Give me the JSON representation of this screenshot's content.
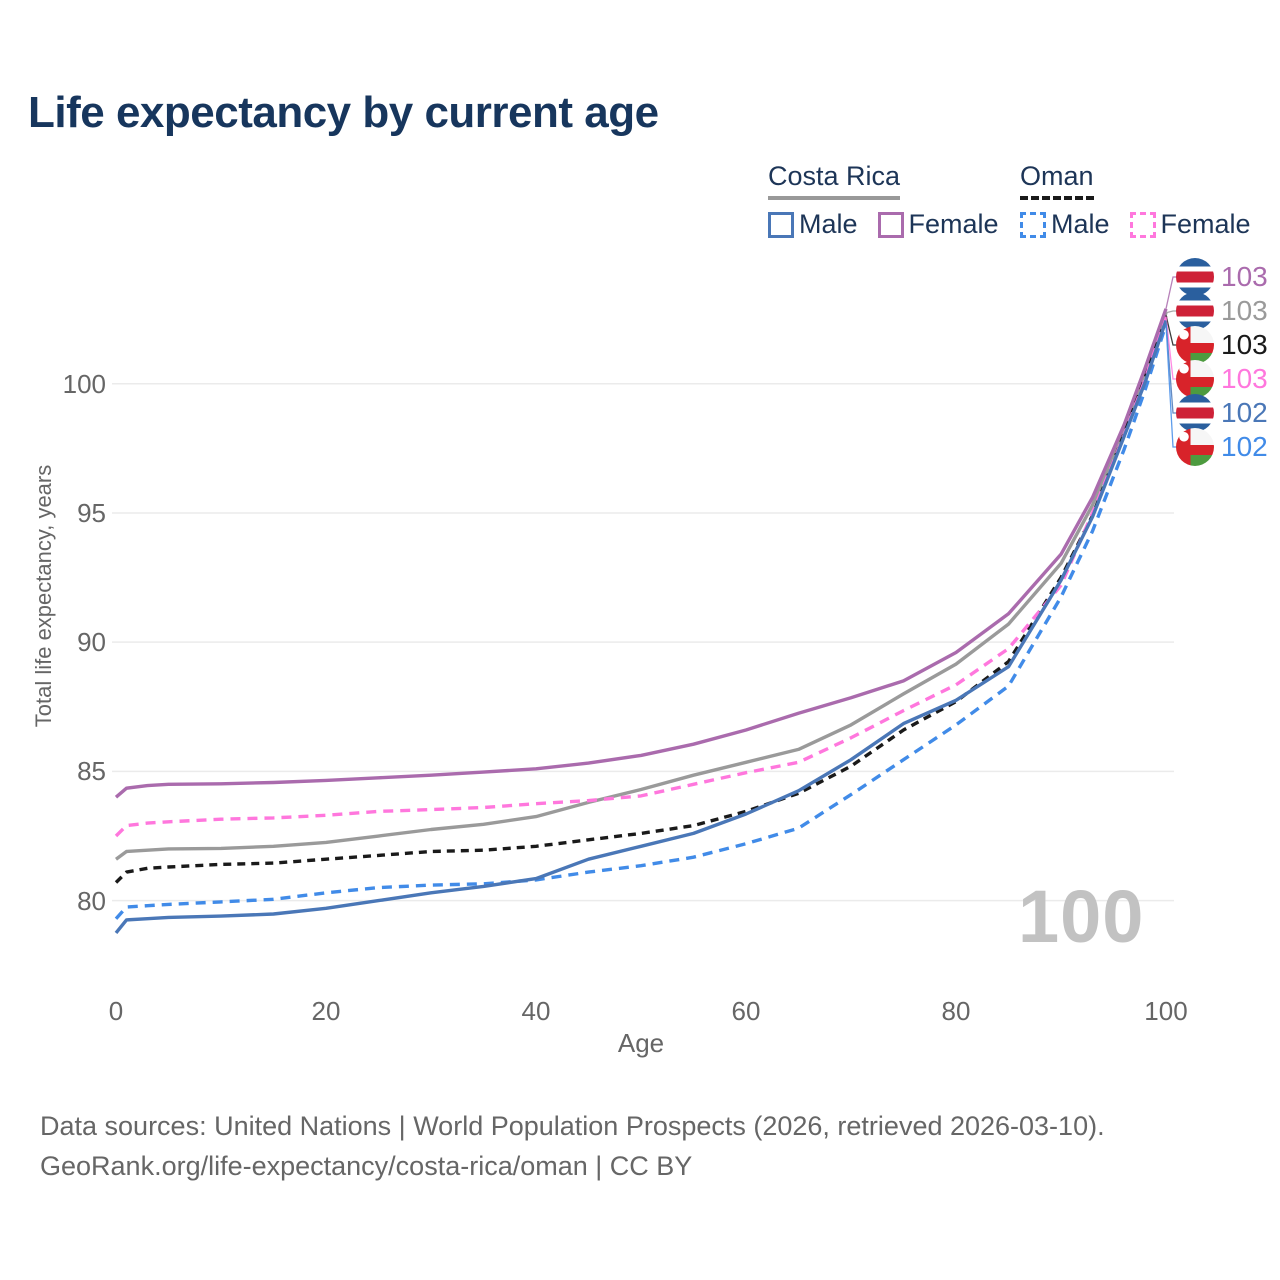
{
  "title": "Life expectancy by current age",
  "legend": {
    "groups": [
      {
        "label": "Costa Rica",
        "line_style": "solid",
        "line_color": "#999999",
        "items": [
          {
            "label": "Male",
            "color": "#4a77b7",
            "dashed": false
          },
          {
            "label": "Female",
            "color": "#aa6bad",
            "dashed": false
          }
        ]
      },
      {
        "label": "Oman",
        "line_style": "dashed",
        "line_color": "#1a1a1a",
        "items": [
          {
            "label": "Male",
            "color": "#418be8",
            "dashed": true
          },
          {
            "label": "Female",
            "color": "#ff77dd",
            "dashed": true
          }
        ]
      }
    ]
  },
  "watermark": "100",
  "footer": {
    "line1": "Data sources: United Nations | World Population Prospects (2026, retrieved 2026-03-10).",
    "line2": "GeoRank.org/life-expectancy/costa-rica/oman | CC BY"
  },
  "chart_data": {
    "type": "line",
    "title": "Life expectancy by current age",
    "xlabel": "Age",
    "ylabel": "Total life expectancy, years",
    "xlim": [
      0,
      100
    ],
    "xticks": [
      0,
      20,
      40,
      60,
      80,
      100
    ],
    "yticks": [
      80,
      85,
      90,
      95,
      100
    ],
    "grid": "horizontal",
    "legend_position": "top-right",
    "x": [
      0,
      1,
      3,
      5,
      10,
      15,
      20,
      25,
      30,
      35,
      40,
      45,
      50,
      55,
      60,
      65,
      70,
      75,
      80,
      85,
      90,
      93,
      96,
      98,
      100
    ],
    "series": [
      {
        "name": "Costa Rica Female",
        "country": "Costa Rica",
        "sex": "Female",
        "color": "#aa6bad",
        "dashed": false,
        "flag": "costa-rica",
        "end_label": "103",
        "values": [
          84.0,
          84.35,
          84.45,
          84.5,
          84.52,
          84.57,
          84.65,
          84.75,
          84.85,
          84.97,
          85.1,
          85.32,
          85.62,
          86.05,
          86.6,
          87.25,
          87.85,
          88.5,
          89.6,
          91.1,
          93.4,
          95.6,
          98.4,
          100.6,
          102.9
        ]
      },
      {
        "name": "Costa Rica Both sexes",
        "country": "Costa Rica",
        "sex": "Both",
        "color": "#9a9a9a",
        "dashed": false,
        "flag": "costa-rica",
        "end_label": "103",
        "values": [
          81.6,
          81.9,
          81.95,
          82.0,
          82.02,
          82.1,
          82.25,
          82.5,
          82.75,
          82.95,
          83.25,
          83.8,
          84.3,
          84.85,
          85.35,
          85.85,
          86.8,
          88.0,
          89.15,
          90.7,
          93.05,
          95.3,
          98.2,
          100.45,
          102.75
        ]
      },
      {
        "name": "Oman Both sexes",
        "country": "Oman",
        "sex": "Both",
        "color": "#1a1a1a",
        "dashed": true,
        "flag": "oman",
        "end_label": "103",
        "values": [
          80.7,
          81.1,
          81.25,
          81.3,
          81.4,
          81.45,
          81.6,
          81.75,
          81.9,
          81.95,
          82.1,
          82.35,
          82.6,
          82.9,
          83.45,
          84.15,
          85.2,
          86.6,
          87.7,
          89.25,
          92.5,
          94.9,
          98.05,
          100.3,
          102.65
        ]
      },
      {
        "name": "Oman Female",
        "country": "Oman",
        "sex": "Female",
        "color": "#ff77dd",
        "dashed": true,
        "flag": "oman",
        "end_label": "103",
        "values": [
          82.5,
          82.9,
          83.0,
          83.05,
          83.15,
          83.2,
          83.3,
          83.45,
          83.52,
          83.6,
          83.75,
          83.87,
          84.05,
          84.5,
          84.95,
          85.35,
          86.3,
          87.35,
          88.35,
          89.75,
          92.2,
          95.0,
          98.0,
          100.15,
          102.6
        ]
      },
      {
        "name": "Costa Rica Male",
        "country": "Costa Rica",
        "sex": "Male",
        "color": "#4a77b7",
        "dashed": false,
        "flag": "costa-rica",
        "end_label": "102",
        "values": [
          78.75,
          79.25,
          79.3,
          79.35,
          79.4,
          79.48,
          79.7,
          80.0,
          80.3,
          80.55,
          80.85,
          81.6,
          82.1,
          82.6,
          83.35,
          84.25,
          85.45,
          86.85,
          87.75,
          89.05,
          92.4,
          94.85,
          97.95,
          100.05,
          102.45
        ]
      },
      {
        "name": "Oman Male",
        "country": "Oman",
        "sex": "Male",
        "color": "#418be8",
        "dashed": true,
        "flag": "oman",
        "end_label": "102",
        "values": [
          79.3,
          79.75,
          79.8,
          79.85,
          79.95,
          80.05,
          80.3,
          80.5,
          80.6,
          80.65,
          80.8,
          81.1,
          81.35,
          81.68,
          82.2,
          82.8,
          84.1,
          85.45,
          86.8,
          88.3,
          91.75,
          94.3,
          97.45,
          99.75,
          102.3
        ]
      }
    ]
  }
}
